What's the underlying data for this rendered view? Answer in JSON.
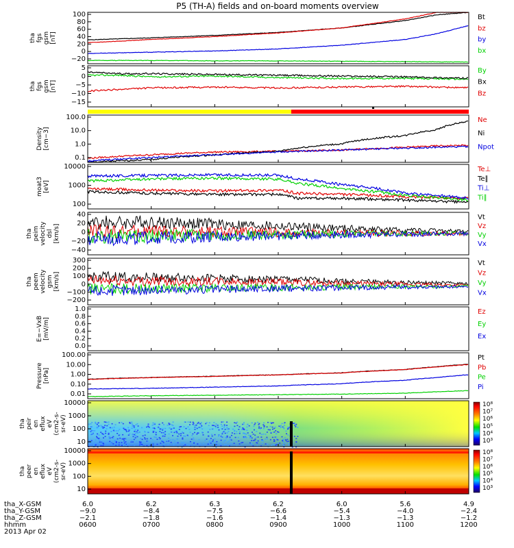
{
  "title": "P5 (TH-A) fields and on-board moments overview",
  "colors": {
    "black": "#000000",
    "red": "#e00000",
    "blue": "#0000e0",
    "green": "#00d000",
    "yellow": "#ffff00",
    "ion_spec_bg": "#ffff40",
    "elec_spec_bg": "#ff5000"
  },
  "footer": {
    "rows": [
      {
        "label": "tha_X-GSM",
        "values": [
          "6.0",
          "6.2",
          "6.3",
          "6.2",
          "6.0",
          "5.6",
          "4.9"
        ]
      },
      {
        "label": "tha_Y-GSM",
        "values": [
          "−9.0",
          "−8.4",
          "−7.5",
          "−6.6",
          "−5.4",
          "−4.0",
          "−2.4"
        ]
      },
      {
        "label": "tha_Z-GSM",
        "values": [
          "−2.1",
          "−1.8",
          "−1.6",
          "−1.4",
          "−1.3",
          "−1.3",
          "−1.2"
        ]
      },
      {
        "label": "hhmm",
        "values": [
          "0600",
          "0700",
          "0800",
          "0900",
          "1000",
          "1100",
          "1200"
        ]
      }
    ],
    "date": "2013 Apr 02"
  },
  "chart_data": [
    {
      "type": "line",
      "ylabel": [
        "tha",
        "fgs",
        "gsm",
        "[nT]"
      ],
      "yticks": [
        "100",
        "80",
        "60",
        "40",
        "20",
        "0",
        "−20"
      ],
      "ylim": [
        -25,
        100
      ],
      "x_range": [
        "0600",
        "1200"
      ],
      "series": [
        {
          "name": "Bt",
          "color": "#000000",
          "x": [
            6.0,
            7.0,
            8.0,
            9.0,
            10.0,
            11.0,
            11.5,
            12.0
          ],
          "y": [
            33,
            38,
            44,
            51,
            62,
            80,
            94,
            100
          ]
        },
        {
          "name": "bz",
          "color": "#e00000",
          "x": [
            6.0,
            7.0,
            8.0,
            9.0,
            10.0,
            11.0,
            11.5,
            12.0
          ],
          "y": [
            26,
            34,
            41,
            50,
            62,
            84,
            100,
            100
          ]
        },
        {
          "name": "by",
          "color": "#0000e0",
          "x": [
            6.0,
            7.0,
            8.0,
            9.0,
            10.0,
            11.0,
            11.5,
            12.0
          ],
          "y": [
            0,
            3,
            6,
            11,
            20,
            34,
            48,
            68
          ]
        },
        {
          "name": "bx",
          "color": "#00d000",
          "x": [
            6.0,
            7.0,
            8.0,
            9.0,
            10.0,
            11.0,
            12.0
          ],
          "y": [
            -17,
            -17,
            -18,
            -18,
            -19,
            -20,
            -21
          ]
        }
      ]
    },
    {
      "type": "line",
      "ylabel": [
        "tha",
        "fgs",
        "gsm",
        "[nT]"
      ],
      "yticks": [
        "5",
        "0",
        "−5",
        "−10",
        "−15"
      ],
      "ylim": [
        -18,
        8
      ],
      "x_range": [
        "0600",
        "1200"
      ],
      "series": [
        {
          "name": "By",
          "color": "#00d000",
          "x": [
            6.0,
            6.5,
            7.0,
            8.0,
            9.0,
            10.0,
            11.0,
            12.0
          ],
          "y": [
            2,
            2,
            1,
            1.5,
            0.5,
            0,
            0,
            -0.5
          ]
        },
        {
          "name": "Bx",
          "color": "#000000",
          "x": [
            6.0,
            6.5,
            7.0,
            8.0,
            9.0,
            10.0,
            11.0,
            12.0
          ],
          "y": [
            4,
            3,
            3,
            2.5,
            2,
            1.5,
            1,
            0
          ]
        },
        {
          "name": "Bz",
          "color": "#e00000",
          "x": [
            6.0,
            6.5,
            7.0,
            8.0,
            9.0,
            10.0,
            11.0,
            12.0
          ],
          "y": [
            -8,
            -7,
            -6,
            -5.5,
            -6,
            -5.5,
            -5,
            -6
          ]
        }
      ]
    },
    {
      "type": "line",
      "ylabel": [
        "Density",
        "[cm−3]"
      ],
      "yticks": [
        "100.0",
        "10.0",
        "1.0",
        "0.1"
      ],
      "ylim": [
        0.1,
        100
      ],
      "log": true,
      "x_range": [
        "0600",
        "1200"
      ],
      "series": [
        {
          "name": "Ne",
          "color": "#e00000",
          "x": [
            6.0,
            7.0,
            8.0,
            9.0,
            10.0,
            11.0,
            11.5,
            12.0
          ],
          "y": [
            0.18,
            0.3,
            0.45,
            0.5,
            0.6,
            0.9,
            1.1,
            1.2
          ]
        },
        {
          "name": "Ni",
          "color": "#000000",
          "x": [
            6.0,
            7.0,
            8.0,
            9.0,
            10.0,
            11.0,
            11.5,
            12.0
          ],
          "y": [
            0.1,
            0.15,
            0.3,
            0.5,
            1.5,
            5,
            12,
            40
          ]
        },
        {
          "name": "Npot",
          "color": "#0000e0",
          "x": [
            6.0,
            7.0,
            8.0,
            9.0,
            10.0,
            11.0,
            11.5,
            12.0
          ],
          "y": [
            0.12,
            0.2,
            0.3,
            0.45,
            0.6,
            0.8,
            0.9,
            1.0
          ]
        }
      ]
    },
    {
      "type": "line",
      "ylabel": [
        "moat3",
        "[eV]"
      ],
      "yticks": [
        "10000",
        "1000",
        "100"
      ],
      "ylim": [
        100,
        10000
      ],
      "log": true,
      "x_range": [
        "0600",
        "1200"
      ],
      "series": [
        {
          "name": "Te⊥",
          "color": "#e00000",
          "x": [
            6.0,
            7.0,
            8.0,
            9.0,
            9.3,
            10.0,
            11.0,
            12.0
          ],
          "y": [
            800,
            700,
            650,
            700,
            500,
            450,
            350,
            300
          ]
        },
        {
          "name": "Te∥",
          "color": "#000000",
          "x": [
            6.0,
            7.0,
            8.0,
            9.0,
            9.3,
            10.0,
            11.0,
            12.0
          ],
          "y": [
            600,
            500,
            450,
            450,
            300,
            300,
            250,
            200
          ]
        },
        {
          "name": "Ti⊥",
          "color": "#0000e0",
          "x": [
            6.0,
            7.0,
            8.0,
            9.0,
            9.3,
            10.0,
            11.0,
            12.0
          ],
          "y": [
            3000,
            3200,
            3400,
            3200,
            2200,
            1200,
            500,
            300
          ]
        },
        {
          "name": "Ti∥",
          "color": "#00d000",
          "x": [
            6.0,
            7.0,
            8.0,
            9.0,
            9.3,
            10.0,
            11.0,
            12.0
          ],
          "y": [
            1800,
            2200,
            2400,
            2200,
            1400,
            800,
            400,
            250
          ]
        }
      ]
    },
    {
      "type": "line",
      "ylabel": [
        "tha",
        "peim",
        "velocity",
        "dsl",
        "[km/s]"
      ],
      "yticks": [
        "40",
        "20",
        "0",
        "−20",
        "−40"
      ],
      "ylim": [
        -40,
        40
      ],
      "x_range": [
        "0600",
        "1200"
      ],
      "series": [
        {
          "name": "Vt",
          "color": "#000000",
          "x": [
            6.0,
            7.0,
            8.0,
            9.0,
            10.0,
            11.0,
            12.0
          ],
          "y": [
            20,
            22,
            18,
            14,
            10,
            6,
            4
          ]
        },
        {
          "name": "Vz",
          "color": "#e00000",
          "x": [
            6.0,
            7.0,
            8.0,
            9.0,
            10.0,
            11.0,
            12.0
          ],
          "y": [
            5,
            4,
            3,
            2,
            1,
            0,
            0
          ]
        },
        {
          "name": "Vy",
          "color": "#00d000",
          "x": [
            6.0,
            7.0,
            8.0,
            9.0,
            10.0,
            11.0,
            12.0
          ],
          "y": [
            -5,
            -4,
            -3,
            -2,
            -1,
            0,
            0
          ]
        },
        {
          "name": "Vx",
          "color": "#0000e0",
          "x": [
            6.0,
            7.0,
            8.0,
            9.0,
            10.0,
            11.0,
            12.0
          ],
          "y": [
            -10,
            -8,
            -6,
            -4,
            -2,
            -1,
            0
          ]
        }
      ]
    },
    {
      "type": "line",
      "ylabel": [
        "tha",
        "peem",
        "velocity",
        "gsm",
        "[km/s]"
      ],
      "yticks": [
        "300",
        "200",
        "100",
        "0",
        "−100",
        "−200"
      ],
      "ylim": [
        -200,
        300
      ],
      "x_range": [
        "0600",
        "1200"
      ],
      "series": [
        {
          "name": "Vt",
          "color": "#000000",
          "x": [
            6.0,
            7.0,
            8.0,
            9.0,
            10.0,
            11.0,
            12.0
          ],
          "y": [
            100,
            95,
            85,
            75,
            55,
            40,
            30
          ]
        },
        {
          "name": "Vz",
          "color": "#e00000",
          "x": [
            6.0,
            7.0,
            8.0,
            9.0,
            10.0,
            11.0,
            12.0
          ],
          "y": [
            60,
            55,
            50,
            40,
            30,
            20,
            10
          ]
        },
        {
          "name": "Vy",
          "color": "#00d000",
          "x": [
            6.0,
            7.0,
            8.0,
            9.0,
            10.0,
            11.0,
            12.0
          ],
          "y": [
            -30,
            -25,
            -20,
            -15,
            -10,
            -5,
            0
          ]
        },
        {
          "name": "Vx",
          "color": "#0000e0",
          "x": [
            6.0,
            7.0,
            8.0,
            9.0,
            10.0,
            11.0,
            12.0
          ],
          "y": [
            -50,
            -40,
            -35,
            -25,
            -15,
            -10,
            -5
          ]
        }
      ]
    },
    {
      "type": "line",
      "ylabel": [
        "E=−VxB",
        "[mV/m]"
      ],
      "yticks": [
        "1.0",
        "0.8",
        "0.6",
        "0.4",
        "0.2",
        "0.0"
      ],
      "ylim": [
        0,
        1
      ],
      "x_range": [
        "0600",
        "1200"
      ],
      "series": [
        {
          "name": "Ez",
          "color": "#e00000",
          "x": [],
          "y": []
        },
        {
          "name": "Ey",
          "color": "#00d000",
          "x": [],
          "y": []
        },
        {
          "name": "Ex",
          "color": "#0000e0",
          "x": [],
          "y": []
        }
      ]
    },
    {
      "type": "line",
      "ylabel": [
        "Pressure",
        "[nPa]"
      ],
      "yticks": [
        "100.00",
        "10.00",
        "1.00",
        "0.10",
        "0.01"
      ],
      "ylim": [
        0.01,
        100
      ],
      "log": true,
      "x_range": [
        "0600",
        "1200"
      ],
      "series": [
        {
          "name": "Pt",
          "color": "#000000",
          "x": [
            6.0,
            7.0,
            8.0,
            9.0,
            10.0,
            11.0,
            11.5,
            12.0
          ],
          "y": [
            0.5,
            0.7,
            0.9,
            1.2,
            1.8,
            3.5,
            6,
            10
          ]
        },
        {
          "name": "Pb",
          "color": "#e00000",
          "x": [
            6.0,
            7.0,
            8.0,
            9.0,
            10.0,
            11.0,
            11.5,
            12.0
          ],
          "y": [
            0.48,
            0.68,
            0.88,
            1.18,
            1.75,
            3.4,
            5.8,
            9.5
          ]
        },
        {
          "name": "Pe",
          "color": "#00d000",
          "x": [
            6.0,
            7.0,
            8.0,
            9.0,
            10.0,
            11.0,
            12.0
          ],
          "y": [
            0.015,
            0.018,
            0.02,
            0.022,
            0.025,
            0.03,
            0.05
          ]
        },
        {
          "name": "Pi",
          "color": "#0000e0",
          "x": [
            6.0,
            7.0,
            8.0,
            9.0,
            10.0,
            11.0,
            11.5,
            12.0
          ],
          "y": [
            0.07,
            0.08,
            0.1,
            0.13,
            0.2,
            0.4,
            0.7,
            1.2
          ]
        }
      ]
    },
    {
      "type": "heatmap",
      "ylabel": [
        "tha",
        "peir",
        "en",
        "eflux",
        "eV",
        "(cm2-s-",
        "sr-eV)"
      ],
      "yticks": [
        "10000",
        "1000",
        "100",
        "10"
      ],
      "colorbar": [
        "10⁸",
        "10⁷",
        "10⁶",
        "10⁵",
        "10⁴",
        "10³"
      ],
      "x_range": [
        "0600",
        "1200"
      ]
    },
    {
      "type": "heatmap",
      "ylabel": [
        "tha",
        "peer",
        "en",
        "eflux",
        "eV",
        "(cm2-s-",
        "sr-eV)"
      ],
      "yticks": [
        "10000",
        "1000",
        "100",
        "10"
      ],
      "colorbar": [
        "10⁸",
        "10⁷",
        "10⁶",
        "10⁵",
        "10⁴",
        "10³"
      ],
      "x_range": [
        "0600",
        "1200"
      ]
    }
  ]
}
